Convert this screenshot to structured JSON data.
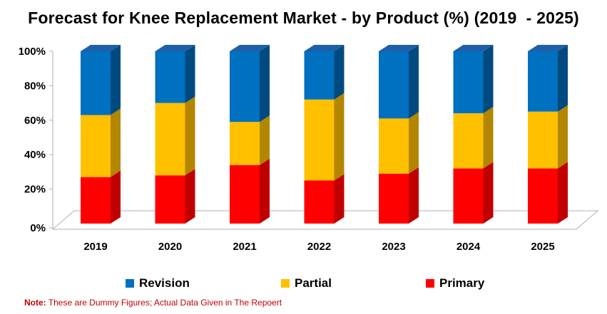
{
  "chart_data": {
    "type": "bar",
    "stacked": true,
    "percent": true,
    "title": "Forecast for Knee Replacement Market - by Product (%) (2019  - 2025)",
    "categories": [
      "2019",
      "2020",
      "2021",
      "2022",
      "2023",
      "2024",
      "2025"
    ],
    "series": [
      {
        "name": "Primary",
        "color": "#ff0000",
        "side": "#c00000",
        "top": "#ff3b3b",
        "values": [
          27,
          28,
          34,
          25,
          29,
          32,
          32
        ]
      },
      {
        "name": "Partial",
        "color": "#ffc000",
        "side": "#b38600",
        "top": "#ffd24d",
        "values": [
          36,
          42,
          25,
          47,
          32,
          32,
          33
        ]
      },
      {
        "name": "Revision",
        "color": "#0070c0",
        "side": "#004a80",
        "top": "#1f5fa8",
        "values": [
          37,
          30,
          41,
          28,
          39,
          36,
          35
        ]
      }
    ],
    "ylim": [
      0,
      100
    ],
    "yticks": [
      "0%",
      "20%",
      "40%",
      "60%",
      "80%",
      "100%"
    ],
    "legend_order": [
      "Revision",
      "Partial",
      "Primary"
    ],
    "legend_position": "bottom",
    "xlabel": "",
    "ylabel": ""
  },
  "note": {
    "prefix": "Note:",
    "text": " These are Dummy Figures; Actual Data Given in The Repoert"
  }
}
